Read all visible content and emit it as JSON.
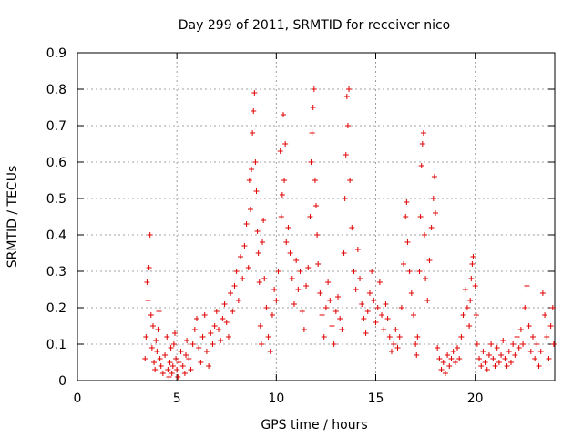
{
  "chart_data": {
    "type": "scatter",
    "title": "Day 299 of 2011, SRMTID for receiver nico",
    "xlabel": "GPS time / hours",
    "ylabel": "SRMTID / TECUs",
    "xlim": [
      0,
      24
    ],
    "ylim": [
      0,
      0.9
    ],
    "xticks": [
      0,
      5,
      10,
      15,
      20
    ],
    "xtick_labels": [
      "0",
      "5",
      "10",
      "15",
      "20"
    ],
    "yticks": [
      0,
      0.1,
      0.2,
      0.3,
      0.4,
      0.5,
      0.6,
      0.7,
      0.8,
      0.9
    ],
    "ytick_labels": [
      "0",
      "0.1",
      "0.2",
      "0.3",
      "0.4",
      "0.5",
      "0.6",
      "0.7",
      "0.8",
      "0.9"
    ],
    "grid": true,
    "marker": "+",
    "series": [
      {
        "name": "SRMTID",
        "color": "#e00000",
        "points": [
          [
            3.4,
            0.06
          ],
          [
            3.45,
            0.12
          ],
          [
            3.5,
            0.27
          ],
          [
            3.55,
            0.22
          ],
          [
            3.6,
            0.31
          ],
          [
            3.65,
            0.4
          ],
          [
            3.7,
            0.18
          ],
          [
            3.75,
            0.09
          ],
          [
            3.8,
            0.15
          ],
          [
            3.85,
            0.05
          ],
          [
            3.9,
            0.03
          ],
          [
            3.95,
            0.11
          ],
          [
            4.0,
            0.08
          ],
          [
            4.05,
            0.14
          ],
          [
            4.1,
            0.19
          ],
          [
            4.15,
            0.06
          ],
          [
            4.2,
            0.04
          ],
          [
            4.3,
            0.02
          ],
          [
            4.4,
            0.07
          ],
          [
            4.5,
            0.12
          ],
          [
            4.55,
            0.03
          ],
          [
            4.6,
            0.01
          ],
          [
            4.65,
            0.05
          ],
          [
            4.7,
            0.09
          ],
          [
            4.75,
            0.02
          ],
          [
            4.8,
            0.04
          ],
          [
            4.85,
            0.1
          ],
          [
            4.9,
            0.13
          ],
          [
            4.95,
            0.06
          ],
          [
            5.0,
            0.03
          ],
          [
            5.05,
            0.01
          ],
          [
            5.1,
            0.05
          ],
          [
            5.2,
            0.08
          ],
          [
            5.3,
            0.04
          ],
          [
            5.4,
            0.02
          ],
          [
            5.45,
            0.07
          ],
          [
            5.5,
            0.11
          ],
          [
            5.6,
            0.06
          ],
          [
            5.7,
            0.03
          ],
          [
            5.8,
            0.1
          ],
          [
            5.9,
            0.14
          ],
          [
            6.0,
            0.17
          ],
          [
            6.1,
            0.09
          ],
          [
            6.2,
            0.05
          ],
          [
            6.3,
            0.12
          ],
          [
            6.4,
            0.18
          ],
          [
            6.5,
            0.08
          ],
          [
            6.6,
            0.04
          ],
          [
            6.7,
            0.13
          ],
          [
            6.8,
            0.1
          ],
          [
            6.9,
            0.15
          ],
          [
            7.0,
            0.19
          ],
          [
            7.1,
            0.14
          ],
          [
            7.2,
            0.11
          ],
          [
            7.3,
            0.17
          ],
          [
            7.4,
            0.21
          ],
          [
            7.5,
            0.16
          ],
          [
            7.6,
            0.12
          ],
          [
            7.7,
            0.24
          ],
          [
            7.8,
            0.19
          ],
          [
            7.9,
            0.26
          ],
          [
            8.0,
            0.3
          ],
          [
            8.1,
            0.22
          ],
          [
            8.2,
            0.34
          ],
          [
            8.3,
            0.28
          ],
          [
            8.4,
            0.37
          ],
          [
            8.5,
            0.43
          ],
          [
            8.6,
            0.31
          ],
          [
            8.65,
            0.55
          ],
          [
            8.7,
            0.47
          ],
          [
            8.75,
            0.58
          ],
          [
            8.8,
            0.68
          ],
          [
            8.85,
            0.74
          ],
          [
            8.9,
            0.79
          ],
          [
            8.95,
            0.6
          ],
          [
            9.0,
            0.52
          ],
          [
            9.05,
            0.41
          ],
          [
            9.1,
            0.35
          ],
          [
            9.15,
            0.27
          ],
          [
            9.2,
            0.15
          ],
          [
            9.25,
            0.1
          ],
          [
            9.3,
            0.38
          ],
          [
            9.35,
            0.44
          ],
          [
            9.4,
            0.28
          ],
          [
            9.5,
            0.2
          ],
          [
            9.6,
            0.12
          ],
          [
            9.7,
            0.08
          ],
          [
            9.8,
            0.18
          ],
          [
            9.9,
            0.25
          ],
          [
            10.0,
            0.22
          ],
          [
            10.1,
            0.3
          ],
          [
            10.2,
            0.63
          ],
          [
            10.25,
            0.45
          ],
          [
            10.3,
            0.51
          ],
          [
            10.35,
            0.73
          ],
          [
            10.4,
            0.55
          ],
          [
            10.45,
            0.65
          ],
          [
            10.5,
            0.38
          ],
          [
            10.6,
            0.42
          ],
          [
            10.7,
            0.35
          ],
          [
            10.8,
            0.28
          ],
          [
            10.9,
            0.21
          ],
          [
            11.0,
            0.33
          ],
          [
            11.1,
            0.25
          ],
          [
            11.2,
            0.3
          ],
          [
            11.3,
            0.19
          ],
          [
            11.4,
            0.14
          ],
          [
            11.5,
            0.26
          ],
          [
            11.6,
            0.31
          ],
          [
            11.7,
            0.45
          ],
          [
            11.75,
            0.6
          ],
          [
            11.8,
            0.68
          ],
          [
            11.85,
            0.75
          ],
          [
            11.9,
            0.8
          ],
          [
            11.95,
            0.55
          ],
          [
            12.0,
            0.48
          ],
          [
            12.05,
            0.4
          ],
          [
            12.1,
            0.32
          ],
          [
            12.2,
            0.24
          ],
          [
            12.3,
            0.18
          ],
          [
            12.4,
            0.12
          ],
          [
            12.5,
            0.2
          ],
          [
            12.6,
            0.27
          ],
          [
            12.7,
            0.22
          ],
          [
            12.8,
            0.15
          ],
          [
            12.9,
            0.1
          ],
          [
            13.0,
            0.19
          ],
          [
            13.1,
            0.23
          ],
          [
            13.2,
            0.17
          ],
          [
            13.3,
            0.14
          ],
          [
            13.4,
            0.35
          ],
          [
            13.45,
            0.5
          ],
          [
            13.5,
            0.62
          ],
          [
            13.55,
            0.78
          ],
          [
            13.6,
            0.7
          ],
          [
            13.65,
            0.8
          ],
          [
            13.7,
            0.55
          ],
          [
            13.8,
            0.42
          ],
          [
            13.9,
            0.3
          ],
          [
            14.0,
            0.25
          ],
          [
            14.1,
            0.36
          ],
          [
            14.2,
            0.28
          ],
          [
            14.3,
            0.21
          ],
          [
            14.4,
            0.17
          ],
          [
            14.5,
            0.13
          ],
          [
            14.6,
            0.19
          ],
          [
            14.7,
            0.24
          ],
          [
            14.8,
            0.3
          ],
          [
            14.9,
            0.22
          ],
          [
            15.0,
            0.16
          ],
          [
            15.1,
            0.2
          ],
          [
            15.2,
            0.27
          ],
          [
            15.3,
            0.18
          ],
          [
            15.4,
            0.14
          ],
          [
            15.5,
            0.21
          ],
          [
            15.6,
            0.17
          ],
          [
            15.7,
            0.12
          ],
          [
            15.8,
            0.08
          ],
          [
            15.9,
            0.1
          ],
          [
            16.0,
            0.14
          ],
          [
            16.1,
            0.09
          ],
          [
            16.2,
            0.12
          ],
          [
            16.3,
            0.2
          ],
          [
            16.4,
            0.32
          ],
          [
            16.5,
            0.45
          ],
          [
            16.55,
            0.49
          ],
          [
            16.6,
            0.38
          ],
          [
            16.7,
            0.3
          ],
          [
            16.8,
            0.24
          ],
          [
            16.9,
            0.18
          ],
          [
            17.0,
            0.1
          ],
          [
            17.05,
            0.07
          ],
          [
            17.1,
            0.12
          ],
          [
            17.2,
            0.3
          ],
          [
            17.25,
            0.45
          ],
          [
            17.3,
            0.59
          ],
          [
            17.35,
            0.65
          ],
          [
            17.4,
            0.68
          ],
          [
            17.45,
            0.4
          ],
          [
            17.5,
            0.28
          ],
          [
            17.6,
            0.22
          ],
          [
            17.7,
            0.33
          ],
          [
            17.8,
            0.42
          ],
          [
            17.9,
            0.5
          ],
          [
            17.95,
            0.56
          ],
          [
            18.0,
            0.46
          ],
          [
            18.1,
            0.09
          ],
          [
            18.2,
            0.06
          ],
          [
            18.3,
            0.03
          ],
          [
            18.4,
            0.05
          ],
          [
            18.5,
            0.02
          ],
          [
            18.6,
            0.07
          ],
          [
            18.7,
            0.04
          ],
          [
            18.8,
            0.06
          ],
          [
            18.9,
            0.08
          ],
          [
            19.0,
            0.05
          ],
          [
            19.1,
            0.09
          ],
          [
            19.2,
            0.06
          ],
          [
            19.3,
            0.12
          ],
          [
            19.4,
            0.18
          ],
          [
            19.5,
            0.25
          ],
          [
            19.6,
            0.2
          ],
          [
            19.7,
            0.15
          ],
          [
            19.75,
            0.22
          ],
          [
            19.8,
            0.28
          ],
          [
            19.85,
            0.32
          ],
          [
            19.9,
            0.34
          ],
          [
            20.0,
            0.26
          ],
          [
            20.05,
            0.18
          ],
          [
            20.1,
            0.1
          ],
          [
            20.2,
            0.06
          ],
          [
            20.3,
            0.04
          ],
          [
            20.4,
            0.08
          ],
          [
            20.5,
            0.05
          ],
          [
            20.6,
            0.03
          ],
          [
            20.7,
            0.07
          ],
          [
            20.8,
            0.1
          ],
          [
            20.9,
            0.06
          ],
          [
            21.0,
            0.04
          ],
          [
            21.1,
            0.09
          ],
          [
            21.2,
            0.05
          ],
          [
            21.3,
            0.07
          ],
          [
            21.4,
            0.11
          ],
          [
            21.5,
            0.06
          ],
          [
            21.6,
            0.04
          ],
          [
            21.7,
            0.08
          ],
          [
            21.8,
            0.05
          ],
          [
            21.9,
            0.1
          ],
          [
            22.0,
            0.07
          ],
          [
            22.1,
            0.12
          ],
          [
            22.2,
            0.09
          ],
          [
            22.3,
            0.14
          ],
          [
            22.4,
            0.1
          ],
          [
            22.5,
            0.2
          ],
          [
            22.6,
            0.26
          ],
          [
            22.7,
            0.15
          ],
          [
            22.8,
            0.08
          ],
          [
            22.9,
            0.12
          ],
          [
            23.0,
            0.06
          ],
          [
            23.1,
            0.1
          ],
          [
            23.2,
            0.04
          ],
          [
            23.3,
            0.08
          ],
          [
            23.4,
            0.24
          ],
          [
            23.5,
            0.18
          ],
          [
            23.6,
            0.12
          ],
          [
            23.7,
            0.06
          ],
          [
            23.8,
            0.15
          ],
          [
            23.9,
            0.2
          ],
          [
            23.95,
            0.1
          ]
        ]
      }
    ]
  }
}
